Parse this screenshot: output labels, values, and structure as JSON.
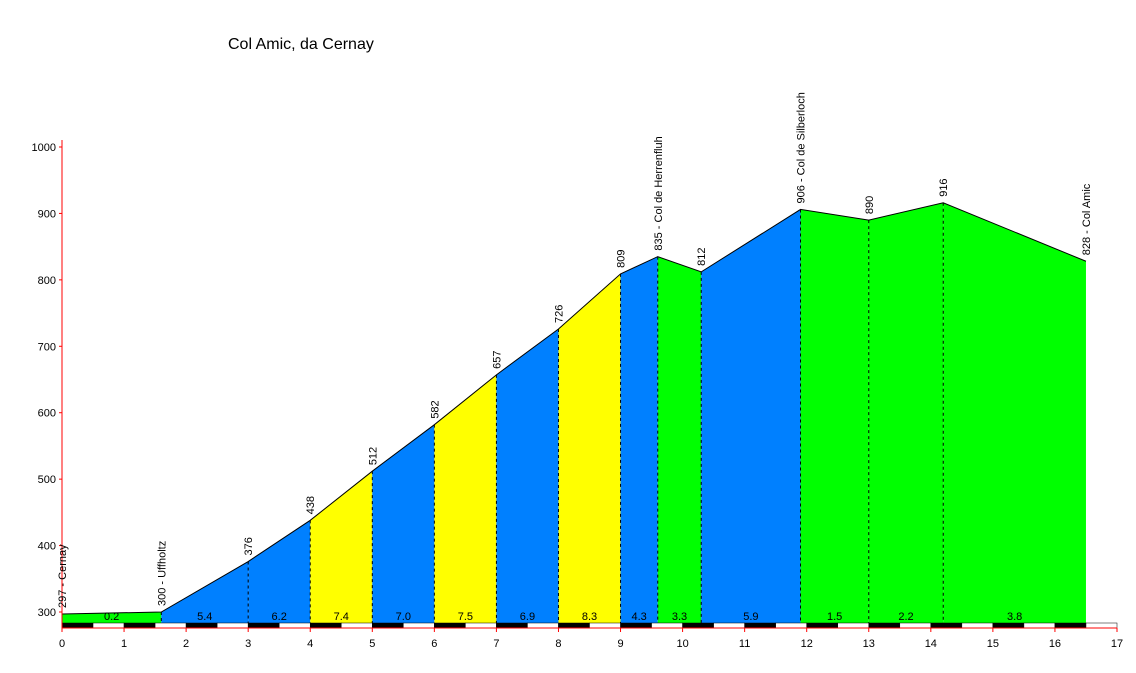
{
  "chart_data": {
    "type": "area",
    "title": "Col Amic, da Cernay",
    "xlabel": "",
    "ylabel": "",
    "xlim": [
      0,
      17
    ],
    "ylim": [
      280,
      1000
    ],
    "x_ticks": [
      0,
      1,
      2,
      3,
      4,
      5,
      6,
      7,
      8,
      9,
      10,
      11,
      12,
      13,
      14,
      15,
      16,
      17
    ],
    "y_ticks": [
      300,
      400,
      500,
      600,
      700,
      800,
      900,
      1000
    ],
    "profile": [
      {
        "km": 0.0,
        "alt": 297,
        "label": "297 - Cernay"
      },
      {
        "km": 1.6,
        "alt": 300,
        "label": "300 - Uffholtz"
      },
      {
        "km": 3.0,
        "alt": 376,
        "label": "376"
      },
      {
        "km": 4.0,
        "alt": 438,
        "label": "438"
      },
      {
        "km": 5.0,
        "alt": 512,
        "label": "512"
      },
      {
        "km": 6.0,
        "alt": 582,
        "label": "582"
      },
      {
        "km": 7.0,
        "alt": 657,
        "label": "657"
      },
      {
        "km": 8.0,
        "alt": 726,
        "label": "726"
      },
      {
        "km": 9.0,
        "alt": 809,
        "label": "809"
      },
      {
        "km": 9.6,
        "alt": 835,
        "label": "835 - Col de Herrenfluh"
      },
      {
        "km": 10.3,
        "alt": 812,
        "label": "812"
      },
      {
        "km": 11.9,
        "alt": 906,
        "label": "906 - Col de Silberloch"
      },
      {
        "km": 13.0,
        "alt": 890,
        "label": "890"
      },
      {
        "km": 14.2,
        "alt": 916,
        "label": "916"
      },
      {
        "km": 16.5,
        "alt": 828,
        "label": "828 - Col Amic"
      }
    ],
    "segments": [
      {
        "gradient": "0.2",
        "color": "#00ff00"
      },
      {
        "gradient": "5.4",
        "color": "#0080ff"
      },
      {
        "gradient": "6.2",
        "color": "#0080ff"
      },
      {
        "gradient": "7.4",
        "color": "#ffff00"
      },
      {
        "gradient": "7.0",
        "color": "#0080ff"
      },
      {
        "gradient": "7.5",
        "color": "#ffff00"
      },
      {
        "gradient": "6.9",
        "color": "#0080ff"
      },
      {
        "gradient": "8.3",
        "color": "#ffff00"
      },
      {
        "gradient": "4.3",
        "color": "#0080ff"
      },
      {
        "gradient": "3.3",
        "color": "#00ff00"
      },
      {
        "gradient": "5.9",
        "color": "#0080ff"
      },
      {
        "gradient": "1.5",
        "color": "#00ff00"
      },
      {
        "gradient": "2.2",
        "color": "#00ff00"
      },
      {
        "gradient": "3.8",
        "color": "#00ff00"
      }
    ],
    "colors": {
      "axis": "#ff0000",
      "text": "#000000",
      "scale_dark": "#000000",
      "scale_light": "#ffffff"
    },
    "grid": false,
    "legend": "none"
  }
}
